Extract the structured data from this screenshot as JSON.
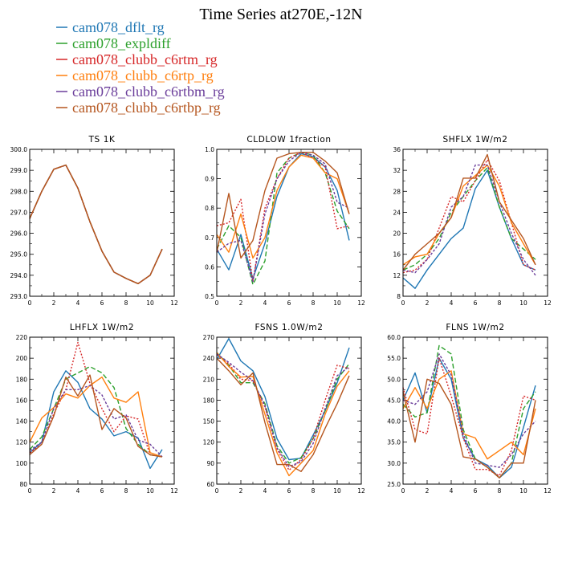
{
  "figure": {
    "title": "Time Series at270E,-12N"
  },
  "legend": [
    {
      "name": "cam078_dflt_rg",
      "color": "#1f77b4",
      "dash": "none"
    },
    {
      "name": "cam078_expldiff",
      "color": "#2ca02c",
      "dash": "6,3"
    },
    {
      "name": "cam078_clubb_c6rtm_rg",
      "color": "#d62728",
      "dash": "2,2"
    },
    {
      "name": "cam078_clubb_c6rtp_rg",
      "color": "#ff7f0e",
      "dash": "none"
    },
    {
      "name": "cam078_clubb_c6rtbm_rg",
      "color": "#6a3d9a",
      "dash": "3,2"
    },
    {
      "name": "cam078_clubb_c6rtbp_rg",
      "color": "#b5561f",
      "dash": "none"
    }
  ],
  "chart_data": [
    {
      "type": "line",
      "title": "TS  1K",
      "xlim": [
        0,
        12
      ],
      "ylim": [
        293,
        300
      ],
      "xticks": [
        0,
        2,
        4,
        6,
        8,
        10,
        12
      ],
      "yticks": [
        293,
        294,
        295,
        296,
        297,
        298,
        299,
        300
      ],
      "ytick_labels": [
        "293.0",
        "294.0",
        "295.0",
        "296.0",
        "297.0",
        "298.0",
        "299.0",
        "300.0"
      ],
      "x": [
        0,
        1,
        2,
        3,
        4,
        5,
        6,
        7,
        8,
        9,
        10,
        11
      ],
      "series": [
        {
          "values": [
            296.7,
            298.0,
            299.05,
            299.25,
            298.15,
            296.55,
            295.15,
            294.15,
            293.85,
            293.6,
            294.0,
            295.25
          ]
        },
        {
          "values": [
            296.7,
            298.0,
            299.05,
            299.25,
            298.15,
            296.55,
            295.15,
            294.15,
            293.85,
            293.6,
            294.0,
            295.25
          ]
        },
        {
          "values": [
            296.7,
            298.0,
            299.05,
            299.25,
            298.15,
            296.55,
            295.15,
            294.15,
            293.85,
            293.6,
            294.0,
            295.25
          ]
        },
        {
          "values": [
            296.7,
            298.0,
            299.05,
            299.25,
            298.15,
            296.55,
            295.15,
            294.15,
            293.85,
            293.6,
            294.0,
            295.25
          ]
        },
        {
          "values": [
            296.7,
            298.0,
            299.05,
            299.25,
            298.15,
            296.55,
            295.15,
            294.15,
            293.85,
            293.6,
            294.0,
            295.25
          ]
        },
        {
          "values": [
            296.7,
            298.0,
            299.05,
            299.25,
            298.15,
            296.55,
            295.15,
            294.15,
            293.85,
            293.6,
            294.0,
            295.25
          ]
        }
      ]
    },
    {
      "type": "line",
      "title": "CLDLOW  1fraction",
      "xlim": [
        0,
        12
      ],
      "ylim": [
        0.5,
        1.0
      ],
      "xticks": [
        0,
        2,
        4,
        6,
        8,
        10,
        12
      ],
      "yticks": [
        0.5,
        0.6,
        0.7,
        0.8,
        0.9,
        1.0
      ],
      "ytick_labels": [
        "0.5",
        "0.6",
        "0.7",
        "0.8",
        "0.9",
        "1.0"
      ],
      "x": [
        0,
        1,
        2,
        3,
        4,
        5,
        6,
        7,
        8,
        9,
        10,
        11
      ],
      "series": [
        {
          "values": [
            0.66,
            0.59,
            0.71,
            0.56,
            0.68,
            0.84,
            0.94,
            0.985,
            0.975,
            0.94,
            0.86,
            0.69
          ]
        },
        {
          "values": [
            0.66,
            0.74,
            0.7,
            0.54,
            0.62,
            0.92,
            0.97,
            0.99,
            0.98,
            0.92,
            0.79,
            0.73
          ]
        },
        {
          "values": [
            0.74,
            0.75,
            0.83,
            0.55,
            0.8,
            0.9,
            0.97,
            0.99,
            0.97,
            0.94,
            0.73,
            0.74
          ]
        },
        {
          "values": [
            0.71,
            0.65,
            0.78,
            0.63,
            0.7,
            0.86,
            0.94,
            0.98,
            0.97,
            0.92,
            0.9,
            0.78
          ]
        },
        {
          "values": [
            0.65,
            0.68,
            0.69,
            0.55,
            0.78,
            0.9,
            0.96,
            0.99,
            0.98,
            0.95,
            0.82,
            0.8
          ]
        },
        {
          "values": [
            0.65,
            0.85,
            0.63,
            0.69,
            0.86,
            0.97,
            0.985,
            0.99,
            0.99,
            0.96,
            0.92,
            0.78
          ]
        }
      ]
    },
    {
      "type": "line",
      "title": "SHFLX  1W/m2",
      "xlim": [
        0,
        12
      ],
      "ylim": [
        8,
        36
      ],
      "xticks": [
        0,
        2,
        4,
        6,
        8,
        10,
        12
      ],
      "yticks": [
        8,
        12,
        16,
        20,
        24,
        28,
        32,
        36
      ],
      "ytick_labels": [
        "8",
        "12",
        "16",
        "20",
        "24",
        "28",
        "32",
        "36"
      ],
      "x": [
        0,
        1,
        2,
        3,
        4,
        5,
        6,
        7,
        8,
        9,
        10,
        11
      ],
      "series": [
        {
          "values": [
            11.5,
            9.5,
            13.0,
            16.0,
            19.0,
            21.0,
            28.5,
            32.0,
            25.0,
            19.0,
            14.0,
            13.0
          ]
        },
        {
          "values": [
            13.0,
            14.0,
            16.0,
            19.0,
            24.0,
            27.0,
            30.0,
            32.5,
            25.0,
            19.0,
            17.0,
            15.0
          ]
        },
        {
          "values": [
            12.5,
            13.0,
            15.0,
            21.0,
            27.0,
            26.0,
            30.0,
            34.0,
            30.0,
            22.0,
            14.0,
            13.0
          ]
        },
        {
          "values": [
            14.0,
            15.5,
            16.0,
            20.0,
            23.0,
            29.0,
            31.0,
            33.0,
            29.0,
            22.0,
            18.0,
            14.0
          ]
        },
        {
          "values": [
            13.0,
            12.5,
            15.0,
            18.0,
            25.0,
            27.0,
            33.0,
            33.0,
            26.0,
            20.0,
            15.0,
            12.0
          ]
        },
        {
          "values": [
            13.0,
            16.0,
            18.0,
            20.0,
            23.0,
            30.5,
            30.5,
            35.0,
            26.0,
            22.5,
            19.0,
            14.0
          ]
        }
      ]
    },
    {
      "type": "line",
      "title": "LHFLX  1W/m2",
      "xlim": [
        0,
        12
      ],
      "ylim": [
        80,
        220
      ],
      "xticks": [
        0,
        2,
        4,
        6,
        8,
        10,
        12
      ],
      "yticks": [
        80,
        100,
        120,
        140,
        160,
        180,
        200,
        220
      ],
      "ytick_labels": [
        "80",
        "100",
        "120",
        "140",
        "160",
        "180",
        "200",
        "220"
      ],
      "x": [
        0,
        1,
        2,
        3,
        4,
        5,
        6,
        7,
        8,
        9,
        10,
        11
      ],
      "series": [
        {
          "values": [
            110,
            120,
            168,
            188,
            177,
            152,
            142,
            126,
            130,
            124,
            95,
            113
          ]
        },
        {
          "values": [
            113,
            125,
            152,
            180,
            186,
            192,
            186,
            172,
            133,
            118,
            108,
            106
          ]
        },
        {
          "values": [
            110,
            118,
            147,
            170,
            215,
            176,
            152,
            130,
            145,
            142,
            108,
            106
          ]
        },
        {
          "values": [
            120,
            143,
            153,
            166,
            162,
            174,
            182,
            162,
            158,
            168,
            110,
            106
          ]
        },
        {
          "values": [
            112,
            120,
            152,
            170,
            170,
            174,
            165,
            142,
            146,
            122,
            118,
            106
          ]
        },
        {
          "values": [
            108,
            118,
            145,
            182,
            164,
            184,
            132,
            152,
            143,
            116,
            108,
            106
          ]
        }
      ]
    },
    {
      "type": "line",
      "title": "FSNS  1.0W/m2",
      "xlim": [
        0,
        12
      ],
      "ylim": [
        60,
        270
      ],
      "xticks": [
        0,
        2,
        4,
        6,
        8,
        10,
        12
      ],
      "yticks": [
        60,
        90,
        120,
        150,
        180,
        210,
        240,
        270
      ],
      "ytick_labels": [
        "60",
        "90",
        "120",
        "150",
        "180",
        "210",
        "240",
        "270"
      ],
      "x": [
        0,
        1,
        2,
        3,
        4,
        5,
        6,
        7,
        8,
        9,
        10,
        11
      ],
      "series": [
        {
          "values": [
            238,
            268,
            236,
            222,
            185,
            125,
            95,
            97,
            130,
            165,
            205,
            255
          ]
        },
        {
          "values": [
            248,
            230,
            205,
            205,
            175,
            115,
            90,
            98,
            125,
            165,
            210,
            232
          ]
        },
        {
          "values": [
            245,
            232,
            210,
            208,
            170,
            110,
            80,
            95,
            125,
            180,
            230,
            225
          ]
        },
        {
          "values": [
            248,
            228,
            213,
            214,
            160,
            105,
            72,
            90,
            108,
            160,
            200,
            222
          ]
        },
        {
          "values": [
            246,
            234,
            220,
            208,
            172,
            112,
            85,
            92,
            118,
            168,
            215,
            228
          ]
        },
        {
          "values": [
            240,
            222,
            202,
            219,
            148,
            88,
            88,
            78,
            102,
            140,
            175,
            215
          ]
        }
      ]
    },
    {
      "type": "line",
      "title": "FLNS  1W/m2",
      "xlim": [
        0,
        12
      ],
      "ylim": [
        25,
        60
      ],
      "xticks": [
        0,
        2,
        4,
        6,
        8,
        10,
        12
      ],
      "yticks": [
        25,
        30,
        35,
        40,
        45,
        50,
        55,
        60
      ],
      "ytick_labels": [
        "25.0",
        "30.0",
        "35.0",
        "40.0",
        "45.0",
        "50.0",
        "55.0",
        "60.0"
      ],
      "x": [
        0,
        1,
        2,
        3,
        4,
        5,
        6,
        7,
        8,
        9,
        10,
        11
      ],
      "series": [
        {
          "values": [
            45,
            51.5,
            42,
            55,
            50,
            36,
            31,
            29.5,
            26.5,
            29,
            38.5,
            48.5
          ]
        },
        {
          "values": [
            44,
            41,
            42,
            58,
            56,
            38,
            31,
            29,
            26.5,
            30,
            43,
            47
          ]
        },
        {
          "values": [
            48,
            38,
            37,
            55,
            46,
            36,
            28.5,
            28.5,
            27,
            33,
            46,
            45
          ]
        },
        {
          "values": [
            43,
            48,
            43,
            50,
            52,
            37,
            36,
            31,
            33,
            35,
            32,
            43
          ]
        },
        {
          "values": [
            45,
            44,
            47,
            56,
            51,
            37,
            30,
            29.5,
            29,
            32,
            37,
            40
          ]
        },
        {
          "values": [
            47,
            35,
            50,
            49,
            44,
            31.5,
            31,
            29,
            26.5,
            30,
            30,
            45
          ]
        }
      ]
    }
  ]
}
